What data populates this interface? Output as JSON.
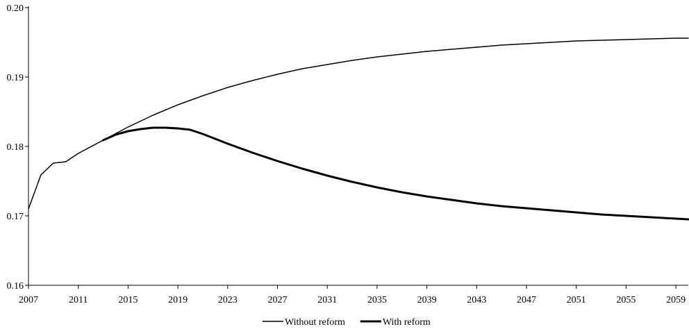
{
  "chart_data": {
    "type": "line",
    "title": "",
    "xlabel": "",
    "ylabel": "",
    "xlim": [
      2007,
      2060
    ],
    "ylim": [
      0.16,
      0.2
    ],
    "grid": false,
    "legend_position": "bottom",
    "x_ticks": [
      "2007",
      "2011",
      "2015",
      "2019",
      "2023",
      "2027",
      "2031",
      "2035",
      "2039",
      "2043",
      "2047",
      "2051",
      "2055",
      "2059"
    ],
    "y_ticks": [
      "0.16",
      "0.17",
      "0.18",
      "0.19",
      "0.20"
    ],
    "series": [
      {
        "name": "Without reform",
        "style": "thin",
        "color": "#000000",
        "points": [
          [
            2007,
            0.171
          ],
          [
            2008,
            0.1759
          ],
          [
            2009,
            0.1776
          ],
          [
            2010,
            0.1778
          ],
          [
            2011,
            0.179
          ],
          [
            2013,
            0.1809
          ],
          [
            2015,
            0.1828
          ],
          [
            2017,
            0.1845
          ],
          [
            2019,
            0.186
          ],
          [
            2021,
            0.1873
          ],
          [
            2023,
            0.1885
          ],
          [
            2025,
            0.1895
          ],
          [
            2027,
            0.1904
          ],
          [
            2029,
            0.1912
          ],
          [
            2031,
            0.1918
          ],
          [
            2033,
            0.1924
          ],
          [
            2035,
            0.1929
          ],
          [
            2037,
            0.1933
          ],
          [
            2039,
            0.1937
          ],
          [
            2041,
            0.194
          ],
          [
            2043,
            0.1943
          ],
          [
            2045,
            0.1946
          ],
          [
            2047,
            0.1948
          ],
          [
            2049,
            0.195
          ],
          [
            2051,
            0.1952
          ],
          [
            2053,
            0.1953
          ],
          [
            2055,
            0.1954
          ],
          [
            2057,
            0.1955
          ],
          [
            2059,
            0.1956
          ],
          [
            2060,
            0.1956
          ]
        ]
      },
      {
        "name": "With reform",
        "style": "thick",
        "color": "#000000",
        "points": [
          [
            2013,
            0.1809
          ],
          [
            2014,
            0.1817
          ],
          [
            2015,
            0.1822
          ],
          [
            2016,
            0.1825
          ],
          [
            2017,
            0.1827
          ],
          [
            2018,
            0.1827
          ],
          [
            2019,
            0.1826
          ],
          [
            2020,
            0.1824
          ],
          [
            2021,
            0.1818
          ],
          [
            2022,
            0.1811
          ],
          [
            2023,
            0.1804
          ],
          [
            2025,
            0.1791
          ],
          [
            2027,
            0.1779
          ],
          [
            2029,
            0.1768
          ],
          [
            2031,
            0.1758
          ],
          [
            2033,
            0.1749
          ],
          [
            2035,
            0.1741
          ],
          [
            2037,
            0.1734
          ],
          [
            2039,
            0.1728
          ],
          [
            2041,
            0.1723
          ],
          [
            2043,
            0.1718
          ],
          [
            2045,
            0.1714
          ],
          [
            2047,
            0.1711
          ],
          [
            2049,
            0.1708
          ],
          [
            2051,
            0.1705
          ],
          [
            2053,
            0.1702
          ],
          [
            2055,
            0.17
          ],
          [
            2057,
            0.1698
          ],
          [
            2059,
            0.1696
          ],
          [
            2060,
            0.1695
          ]
        ]
      }
    ]
  }
}
